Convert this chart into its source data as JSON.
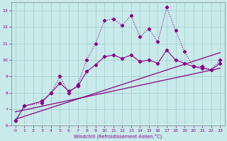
{
  "xlabel": "Windchill (Refroidissement éolien,°C)",
  "background_color": "#c8eaea",
  "grid_color": "#a0cccc",
  "line_color": "#880088",
  "xlim": [
    -0.5,
    23.5
  ],
  "ylim": [
    6,
    13.5
  ],
  "xticks": [
    0,
    1,
    2,
    3,
    4,
    5,
    6,
    7,
    8,
    9,
    10,
    11,
    12,
    13,
    14,
    15,
    16,
    17,
    18,
    19,
    20,
    21,
    22,
    23
  ],
  "yticks": [
    6,
    7,
    8,
    9,
    10,
    11,
    12,
    13
  ],
  "curve1_x": [
    0,
    1,
    3,
    4,
    5,
    6,
    7,
    8,
    9,
    10,
    11,
    12,
    13,
    14,
    15,
    16,
    17,
    18,
    19,
    20,
    21,
    22,
    23
  ],
  "curve1_y": [
    6.3,
    7.2,
    7.4,
    8.0,
    9.0,
    8.0,
    8.5,
    10.0,
    11.0,
    12.4,
    12.5,
    12.1,
    12.7,
    11.4,
    11.9,
    11.1,
    13.2,
    11.8,
    10.5,
    9.6,
    9.6,
    9.4,
    10.0
  ],
  "curve2_x": [
    0,
    1,
    3,
    4,
    5,
    6,
    7,
    8,
    9,
    10,
    11,
    12,
    13,
    14,
    15,
    16,
    17,
    18,
    19,
    20,
    21,
    22,
    23
  ],
  "curve2_y": [
    6.3,
    7.2,
    7.5,
    8.0,
    8.6,
    8.1,
    8.4,
    9.3,
    9.7,
    10.2,
    10.3,
    10.1,
    10.3,
    9.9,
    10.0,
    9.8,
    10.6,
    10.0,
    9.8,
    9.6,
    9.5,
    9.4,
    9.8
  ],
  "line1_x": [
    0,
    23
  ],
  "line1_y": [
    6.4,
    10.45
  ],
  "line2_x": [
    0,
    23
  ],
  "line2_y": [
    6.85,
    9.5
  ]
}
